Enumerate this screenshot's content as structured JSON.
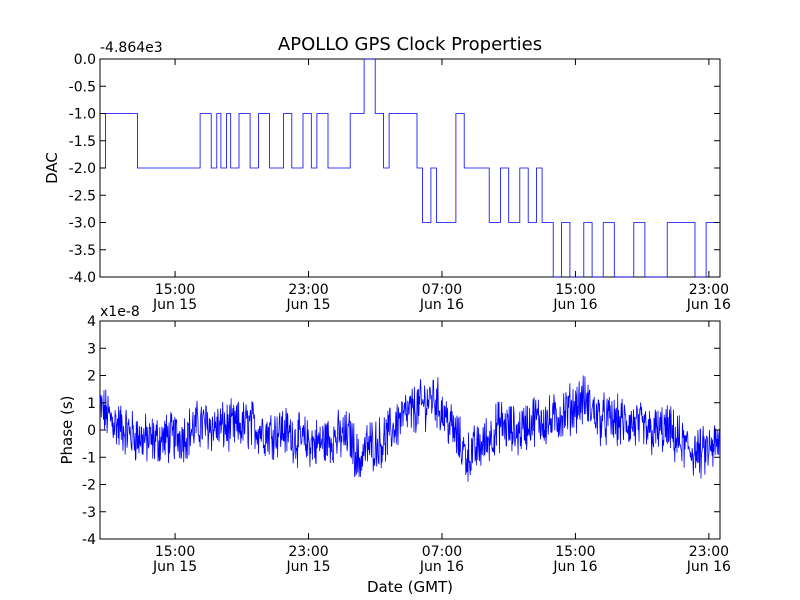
{
  "chart_data": [
    {
      "type": "line",
      "title": "APOLLO GPS Clock Properties",
      "ylabel": "DAC",
      "xlabel": "",
      "offset_label": "-4.864e3",
      "ylim": [
        -4.0,
        0.0
      ],
      "xlim": [
        "2014-06-15 10:30",
        "2014-06-16 23:40"
      ],
      "y_ticks": [
        "0.0",
        "-0.5",
        "-1.0",
        "-1.5",
        "-2.0",
        "-2.5",
        "-3.0",
        "-3.5",
        "-4.0"
      ],
      "x_ticks": [
        {
          "time": "15:00",
          "date": "Jun 15"
        },
        {
          "time": "23:00",
          "date": "Jun 15"
        },
        {
          "time": "07:00",
          "date": "Jun 16"
        },
        {
          "time": "15:00",
          "date": "Jun 16"
        },
        {
          "time": "23:00",
          "date": "Jun 16"
        }
      ],
      "series": [
        {
          "color": "#0000ff",
          "x": [
            "2014-06-15 10:30",
            "2014-06-15 10:50",
            "2014-06-15 11:40",
            "2014-06-15 12:45",
            "2014-06-15 16:30",
            "2014-06-15 17:10",
            "2014-06-15 17:30",
            "2014-06-15 17:45",
            "2014-06-15 18:05",
            "2014-06-15 18:20",
            "2014-06-15 18:50",
            "2014-06-15 19:30",
            "2014-06-15 20:00",
            "2014-06-15 20:40",
            "2014-06-15 21:30",
            "2014-06-15 22:00",
            "2014-06-15 22:40",
            "2014-06-15 23:10",
            "2014-06-15 23:30",
            "2014-06-16 00:10",
            "2014-06-16 01:30",
            "2014-06-16 02:20",
            "2014-06-16 03:00",
            "2014-06-16 03:30",
            "2014-06-16 03:50",
            "2014-06-16 05:30",
            "2014-06-16 05:50",
            "2014-06-16 06:20",
            "2014-06-16 06:40",
            "2014-06-16 07:50",
            "2014-06-16 08:20",
            "2014-06-16 09:10",
            "2014-06-16 09:50",
            "2014-06-16 10:30",
            "2014-06-16 11:00",
            "2014-06-16 11:40",
            "2014-06-16 12:10",
            "2014-06-16 12:40",
            "2014-06-16 13:00",
            "2014-06-16 13:20",
            "2014-06-16 13:40",
            "2014-06-16 14:10",
            "2014-06-16 14:40",
            "2014-06-16 15:30",
            "2014-06-16 16:00",
            "2014-06-16 16:40",
            "2014-06-16 17:20",
            "2014-06-16 18:30",
            "2014-06-16 19:10",
            "2014-06-16 20:30",
            "2014-06-16 22:10",
            "2014-06-16 22:50",
            "2014-06-16 23:40"
          ],
          "values": [
            -2.0,
            -1.0,
            -1.0,
            -2.0,
            -1.0,
            -2.0,
            -1.0,
            -2.0,
            -1.0,
            -2.0,
            -1.0,
            -2.0,
            -1.0,
            -2.0,
            -1.0,
            -2.0,
            -1.0,
            -2.0,
            -1.0,
            -2.0,
            -1.0,
            0.0,
            -1.0,
            -2.0,
            -1.0,
            -2.0,
            -3.0,
            -2.0,
            -3.0,
            -1.0,
            -2.0,
            -2.0,
            -3.0,
            -2.0,
            -3.0,
            -2.0,
            -3.0,
            -2.0,
            -3.0,
            -3.0,
            -4.0,
            -3.0,
            -4.0,
            -3.0,
            -4.0,
            -3.0,
            -4.0,
            -3.0,
            -4.0,
            -3.0,
            -4.0,
            -3.0,
            -3.0
          ]
        }
      ]
    },
    {
      "type": "line",
      "title": "",
      "ylabel": "Phase (s)",
      "xlabel": "Date (GMT)",
      "offset_label": "x1e-8",
      "ylim": [
        -4,
        4
      ],
      "xlim": [
        "2014-06-15 10:30",
        "2014-06-16 23:40"
      ],
      "y_ticks": [
        "4",
        "3",
        "2",
        "1",
        "0",
        "-1",
        "-2",
        "-3",
        "-4"
      ],
      "x_ticks": [
        {
          "time": "15:00",
          "date": "Jun 15"
        },
        {
          "time": "23:00",
          "date": "Jun 15"
        },
        {
          "time": "07:00",
          "date": "Jun 16"
        },
        {
          "time": "15:00",
          "date": "Jun 16"
        },
        {
          "time": "23:00",
          "date": "Jun 16"
        }
      ],
      "series": [
        {
          "color": "#0000ff",
          "x": [
            "2014-06-15 10:30",
            "2014-06-15 11:30",
            "2014-06-15 12:30",
            "2014-06-15 13:30",
            "2014-06-15 14:30",
            "2014-06-15 15:30",
            "2014-06-15 16:30",
            "2014-06-15 17:30",
            "2014-06-15 18:30",
            "2014-06-15 19:30",
            "2014-06-15 20:30",
            "2014-06-15 21:30",
            "2014-06-15 22:30",
            "2014-06-15 23:30",
            "2014-06-16 00:30",
            "2014-06-16 01:30",
            "2014-06-16 02:00",
            "2014-06-16 02:30",
            "2014-06-16 03:30",
            "2014-06-16 04:30",
            "2014-06-16 05:30",
            "2014-06-16 06:30",
            "2014-06-16 07:30",
            "2014-06-16 08:30",
            "2014-06-16 09:30",
            "2014-06-16 10:30",
            "2014-06-16 11:30",
            "2014-06-16 12:30",
            "2014-06-16 13:30",
            "2014-06-16 14:30",
            "2014-06-16 15:30",
            "2014-06-16 16:30",
            "2014-06-16 17:30",
            "2014-06-16 18:30",
            "2014-06-16 19:30",
            "2014-06-16 20:30",
            "2014-06-16 21:30",
            "2014-06-16 22:30",
            "2014-06-16 23:40"
          ],
          "values": [
            0.8,
            0.2,
            -0.2,
            -0.4,
            -0.3,
            -0.2,
            0.2,
            0.1,
            0.1,
            0.2,
            -0.1,
            0.0,
            -0.4,
            -0.5,
            -0.3,
            -0.2,
            -1.2,
            -0.6,
            -0.4,
            0.4,
            0.8,
            1.2,
            0.2,
            -1.0,
            -0.5,
            0.2,
            -0.1,
            0.4,
            0.3,
            0.7,
            1.1,
            0.4,
            0.3,
            0.2,
            -0.1,
            0.0,
            -0.6,
            -0.9,
            -0.5
          ]
        }
      ]
    }
  ]
}
